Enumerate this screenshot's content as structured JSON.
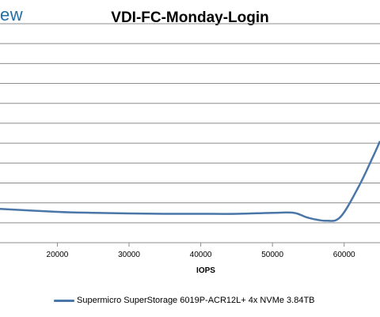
{
  "logo": {
    "text": "ew"
  },
  "chart_data": {
    "type": "line",
    "title": "VDI-FC-Monday-Login",
    "xlabel": "IOPS",
    "ylabel": "",
    "xlim": [
      12000,
      65000
    ],
    "x_ticks": [
      20000,
      30000,
      40000,
      50000,
      60000
    ],
    "ylim": [
      0,
      11
    ],
    "grid": true,
    "legend": "bottom",
    "series": [
      {
        "name": "Supermicro SuperStorage 6019P-ACR12L+ 4x NVMe 3.84TB",
        "color": "#4a76a8",
        "x": [
          12000,
          20000,
          25000,
          30000,
          35000,
          40000,
          45000,
          50000,
          53000,
          55000,
          57500,
          59500,
          62000,
          64000,
          65000
        ],
        "y": [
          1.7,
          1.55,
          1.5,
          1.47,
          1.45,
          1.45,
          1.45,
          1.5,
          1.5,
          1.25,
          1.1,
          1.3,
          2.8,
          4.3,
          5.1
        ]
      }
    ]
  }
}
